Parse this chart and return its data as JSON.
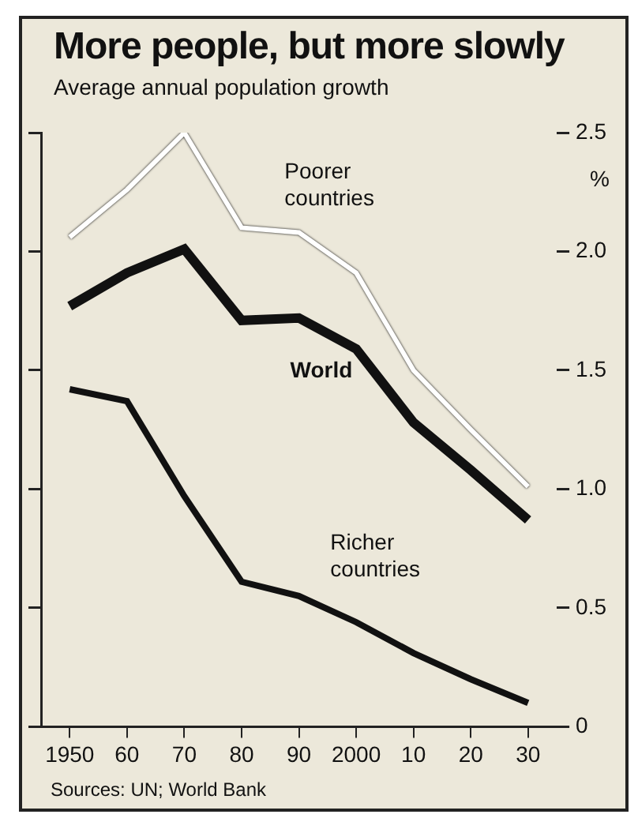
{
  "chart_data": {
    "type": "line",
    "title": "More people, but more slowly",
    "subtitle": "Average annual population growth",
    "ylabel": "%",
    "categories": [
      "1950",
      "60",
      "70",
      "80",
      "90",
      "2000",
      "10",
      "20",
      "30"
    ],
    "series": [
      {
        "name": "Poorer countries",
        "color": "#ffffff",
        "values": [
          2.06,
          2.26,
          2.5,
          2.1,
          2.08,
          1.91,
          1.5,
          1.25,
          1.01
        ]
      },
      {
        "name": "World",
        "color": "#111111",
        "values": [
          1.77,
          1.91,
          2.01,
          1.71,
          1.72,
          1.59,
          1.28,
          1.08,
          0.87
        ]
      },
      {
        "name": "Richer countries",
        "color": "#111111",
        "values": [
          1.42,
          1.37,
          0.97,
          0.61,
          0.55,
          0.44,
          0.31,
          0.2,
          0.1
        ]
      }
    ],
    "ylim": [
      0,
      2.5
    ],
    "yticks": [
      0,
      {
        "value": 0.5,
        "label": "0.5"
      },
      {
        "value": 1,
        "label": "1.0"
      },
      {
        "value": 1.5,
        "label": "1.5"
      },
      {
        "value": 2,
        "label": "2.0"
      },
      {
        "value": 2.5,
        "label": "2.5"
      }
    ],
    "grid": false,
    "legend": false,
    "marker": "none",
    "line_style": "solid",
    "annotations": [
      "Sources: UN; World Bank"
    ]
  }
}
